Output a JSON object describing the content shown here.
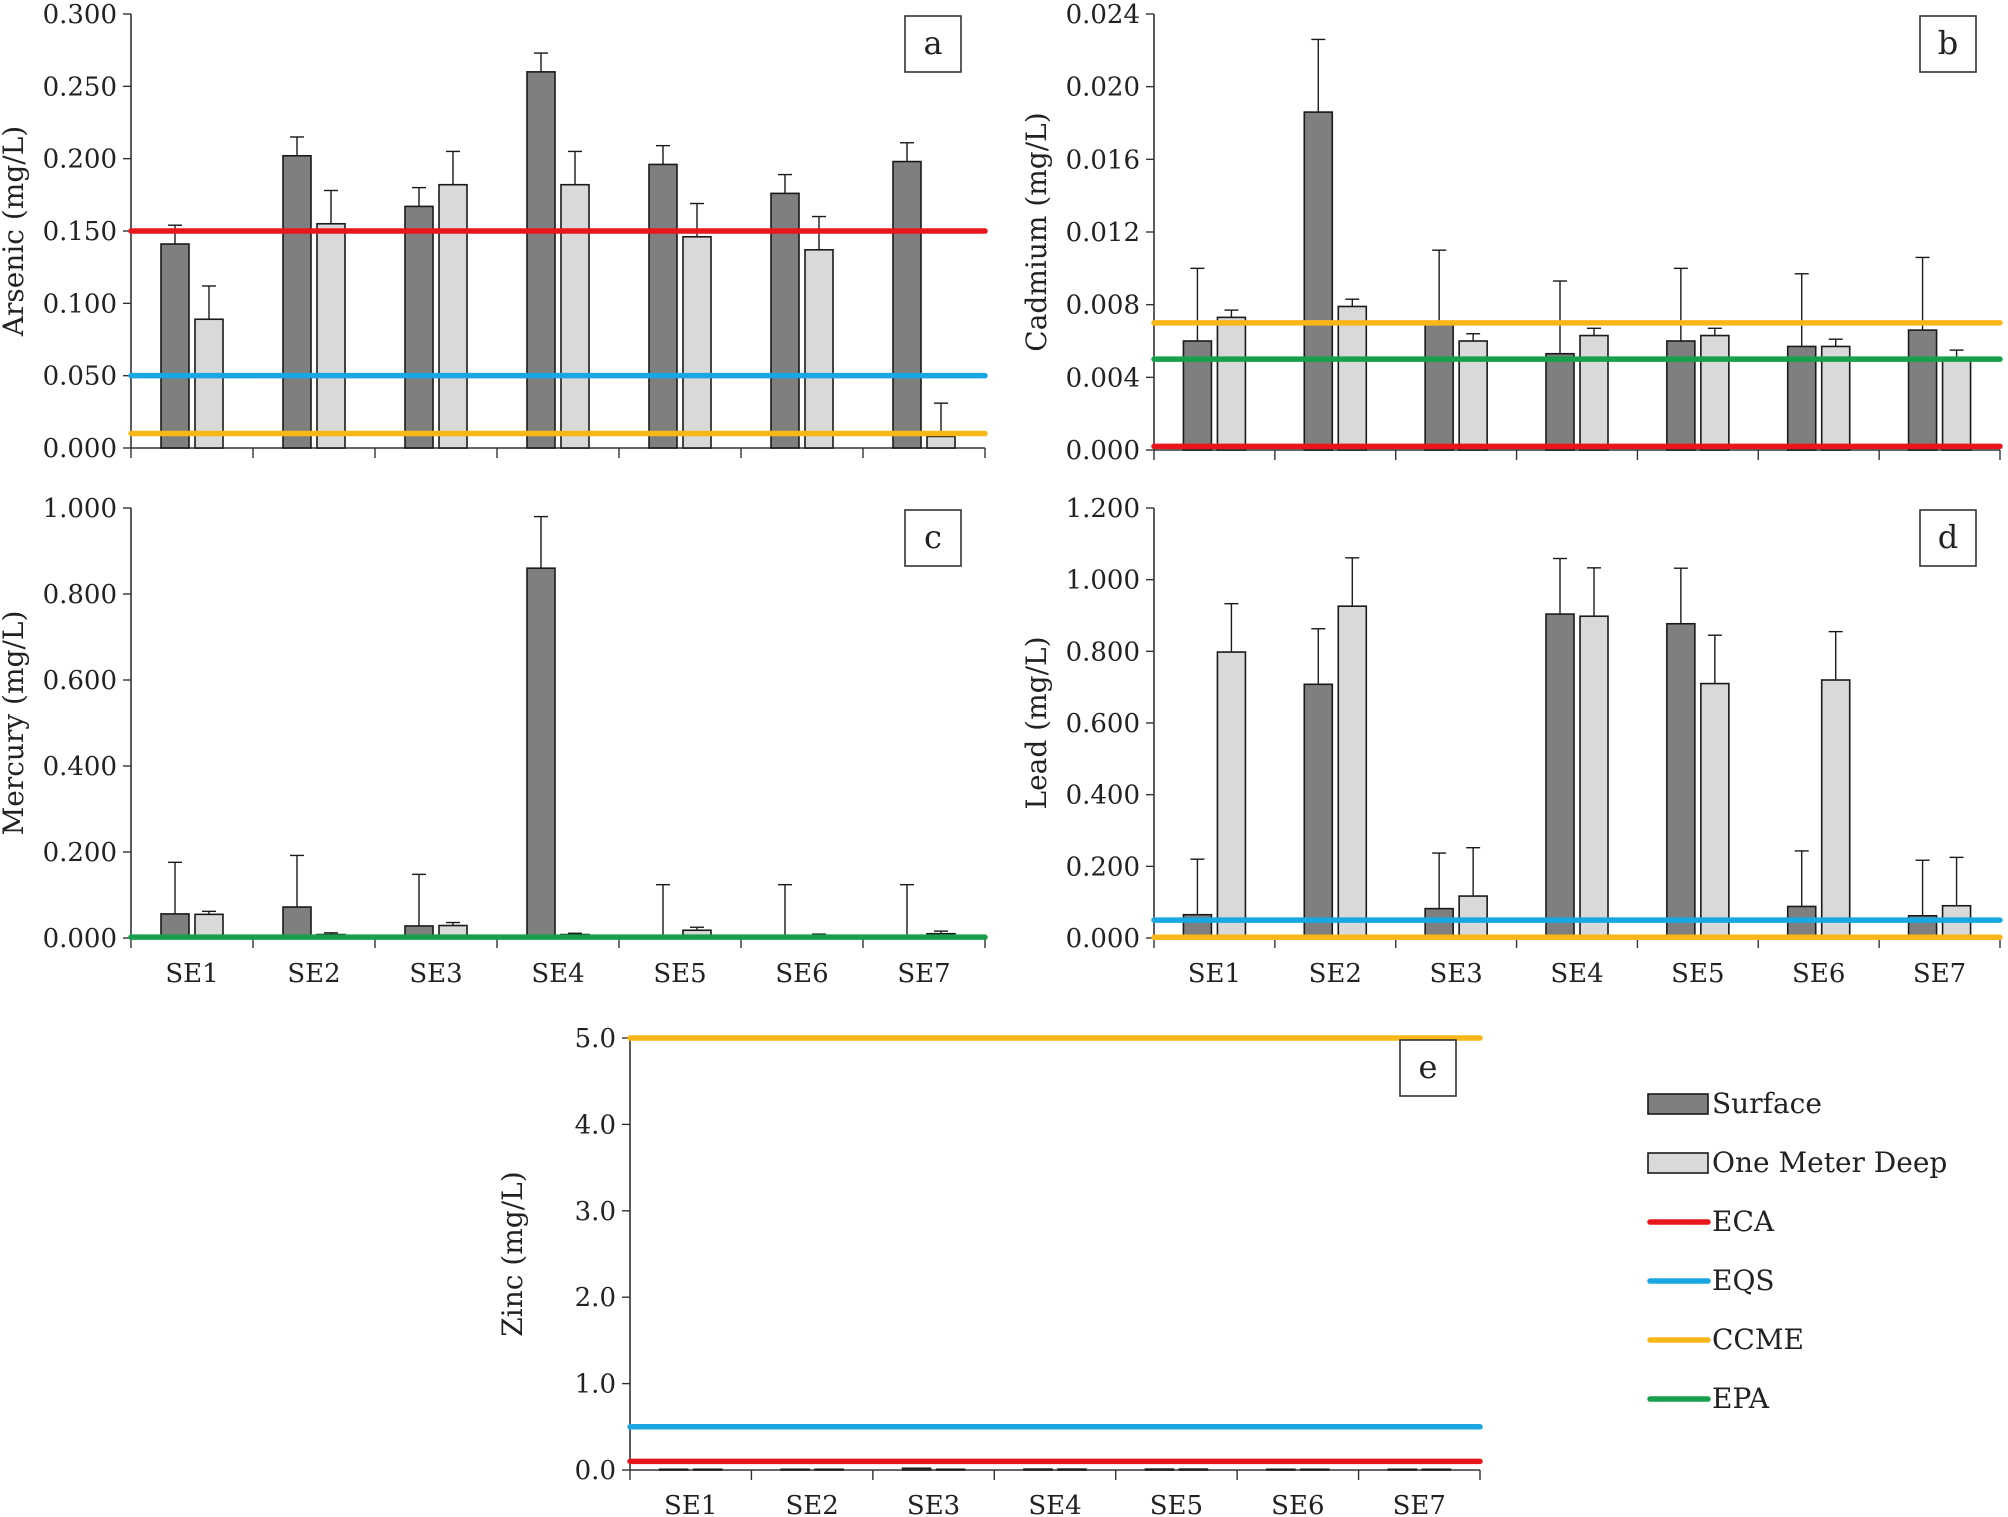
{
  "chart_data": [
    {
      "id": "a",
      "type": "bar",
      "panel_label": "a",
      "ylabel": "Arsenic (mg/L)",
      "ylim": [
        0,
        0.3
      ],
      "yticks": [
        0,
        0.05,
        0.1,
        0.15,
        0.2,
        0.25,
        0.3
      ],
      "ytick_labels": [
        "0.000",
        "0.050",
        "0.100",
        "0.150",
        "0.200",
        "0.250",
        "0.300"
      ],
      "categories": [
        "SE1",
        "SE2",
        "SE3",
        "SE4",
        "SE5",
        "SE6",
        "SE7"
      ],
      "show_category_labels": false,
      "series": [
        {
          "name": "Surface",
          "color": "#7f7f7f",
          "values": [
            0.141,
            0.202,
            0.167,
            0.26,
            0.196,
            0.176,
            0.198
          ],
          "errors": [
            0.013,
            0.013,
            0.013,
            0.013,
            0.013,
            0.013,
            0.013
          ]
        },
        {
          "name": "One Meter Deep",
          "color": "#d9d9d9",
          "values": [
            0.089,
            0.155,
            0.182,
            0.182,
            0.146,
            0.137,
            0.008
          ],
          "errors": [
            0.023,
            0.023,
            0.023,
            0.023,
            0.023,
            0.023,
            0.023
          ]
        }
      ],
      "guidelines": [
        {
          "name": "ECA",
          "value": 0.15,
          "color": "#e8161b"
        },
        {
          "name": "EQS",
          "value": 0.05,
          "color": "#1aa7e1"
        },
        {
          "name": "CCME",
          "value": 0.01,
          "color": "#f7b718"
        }
      ]
    },
    {
      "id": "b",
      "type": "bar",
      "panel_label": "b",
      "ylabel": "Cadmium (mg/L)",
      "ylim": [
        0,
        0.024
      ],
      "yticks": [
        0,
        0.004,
        0.008,
        0.012,
        0.016,
        0.02,
        0.024
      ],
      "ytick_labels": [
        "0.000",
        "0.004",
        "0.008",
        "0.012",
        "0.016",
        "0.020",
        "0.024"
      ],
      "categories": [
        "SE1",
        "SE2",
        "SE3",
        "SE4",
        "SE5",
        "SE6",
        "SE7"
      ],
      "show_category_labels": false,
      "series": [
        {
          "name": "Surface",
          "color": "#7f7f7f",
          "values": [
            0.006,
            0.0186,
            0.007,
            0.0053,
            0.006,
            0.0057,
            0.0066
          ],
          "errors": [
            0.004,
            0.004,
            0.004,
            0.004,
            0.004,
            0.004,
            0.004
          ]
        },
        {
          "name": "One Meter Deep",
          "color": "#d9d9d9",
          "values": [
            0.0073,
            0.0079,
            0.006,
            0.0063,
            0.0063,
            0.0057,
            0.0051
          ],
          "errors": [
            0.0004,
            0.0004,
            0.0004,
            0.0004,
            0.0004,
            0.0004,
            0.0004
          ]
        }
      ],
      "guidelines": [
        {
          "name": "CCME",
          "value": 0.007,
          "color": "#f7b718"
        },
        {
          "name": "EPA",
          "value": 0.005,
          "color": "#16a04b"
        },
        {
          "name": "ECA",
          "value": 0.0002,
          "color": "#e8161b"
        }
      ]
    },
    {
      "id": "c",
      "type": "bar",
      "panel_label": "c",
      "ylabel": "Mercury (mg/L)",
      "ylim": [
        0,
        1.0
      ],
      "yticks": [
        0,
        0.2,
        0.4,
        0.6,
        0.8,
        1.0
      ],
      "ytick_labels": [
        "0.000",
        "0.200",
        "0.400",
        "0.600",
        "0.800",
        "1.000"
      ],
      "categories": [
        "SE1",
        "SE2",
        "SE3",
        "SE4",
        "SE5",
        "SE6",
        "SE7"
      ],
      "show_category_labels": true,
      "series": [
        {
          "name": "Surface",
          "color": "#7f7f7f",
          "values": [
            0.056,
            0.072,
            0.028,
            0.86,
            0.004,
            0.004,
            0.004
          ],
          "errors": [
            0.12,
            0.12,
            0.12,
            0.12,
            0.12,
            0.12,
            0.12
          ]
        },
        {
          "name": "One Meter Deep",
          "color": "#d9d9d9",
          "values": [
            0.055,
            0.008,
            0.029,
            0.008,
            0.018,
            0.006,
            0.01
          ],
          "errors": [
            0.007,
            0.004,
            0.007,
            0.003,
            0.007,
            0.003,
            0.006
          ]
        }
      ],
      "guidelines": [
        {
          "name": "EPA",
          "value": 0.002,
          "color": "#16a04b"
        }
      ]
    },
    {
      "id": "d",
      "type": "bar",
      "panel_label": "d",
      "ylabel": "Lead (mg/L)",
      "ylim": [
        0,
        1.2
      ],
      "yticks": [
        0,
        0.2,
        0.4,
        0.6,
        0.8,
        1.0,
        1.2
      ],
      "ytick_labels": [
        "0.000",
        "0.200",
        "0.400",
        "0.600",
        "0.800",
        "1.000",
        "1.200"
      ],
      "categories": [
        "SE1",
        "SE2",
        "SE3",
        "SE4",
        "SE5",
        "SE6",
        "SE7"
      ],
      "show_category_labels": true,
      "series": [
        {
          "name": "Surface",
          "color": "#7f7f7f",
          "values": [
            0.065,
            0.708,
            0.082,
            0.904,
            0.877,
            0.088,
            0.062
          ],
          "errors": [
            0.155,
            0.155,
            0.155,
            0.155,
            0.155,
            0.155,
            0.155
          ]
        },
        {
          "name": "One Meter Deep",
          "color": "#d9d9d9",
          "values": [
            0.798,
            0.926,
            0.117,
            0.898,
            0.71,
            0.72,
            0.09
          ],
          "errors": [
            0.135,
            0.135,
            0.135,
            0.135,
            0.135,
            0.135,
            0.135
          ]
        }
      ],
      "guidelines": [
        {
          "name": "EQS",
          "value": 0.05,
          "color": "#1aa7e1"
        },
        {
          "name": "CCME",
          "value": 0.002,
          "color": "#f7b718"
        }
      ]
    },
    {
      "id": "e",
      "type": "bar",
      "panel_label": "e",
      "ylabel": "Zinc (mg/L)",
      "ylim": [
        0,
        5.0
      ],
      "yticks": [
        0,
        1,
        2,
        3,
        4,
        5
      ],
      "ytick_labels": [
        "0.0",
        "1.0",
        "2.0",
        "3.0",
        "4.0",
        "5.0"
      ],
      "categories": [
        "SE1",
        "SE2",
        "SE3",
        "SE4",
        "SE5",
        "SE6",
        "SE7"
      ],
      "show_category_labels": true,
      "series": [
        {
          "name": "Surface",
          "color": "#7f7f7f",
          "values": [
            0.008,
            0.008,
            0.02,
            0.01,
            0.01,
            0.008,
            0.008
          ],
          "errors": [
            0,
            0,
            0,
            0,
            0,
            0,
            0
          ]
        },
        {
          "name": "One Meter Deep",
          "color": "#d9d9d9",
          "values": [
            0.008,
            0.008,
            0.008,
            0.01,
            0.01,
            0.008,
            0.008
          ],
          "errors": [
            0,
            0,
            0,
            0,
            0,
            0,
            0
          ]
        }
      ],
      "guidelines": [
        {
          "name": "CCME",
          "value": 5.0,
          "color": "#f7b718"
        },
        {
          "name": "EQS",
          "value": 0.5,
          "color": "#1aa7e1"
        },
        {
          "name": "ECA",
          "value": 0.1,
          "color": "#e8161b"
        }
      ]
    }
  ],
  "legend": {
    "items": [
      {
        "label": "Surface",
        "kind": "box",
        "color": "#7f7f7f"
      },
      {
        "label": "One Meter Deep",
        "kind": "box",
        "color": "#d9d9d9"
      },
      {
        "label": "ECA",
        "kind": "line",
        "color": "#e8161b"
      },
      {
        "label": "EQS",
        "kind": "line",
        "color": "#1aa7e1"
      },
      {
        "label": "CCME",
        "kind": "line",
        "color": "#f7b718"
      },
      {
        "label": "EPA",
        "kind": "line",
        "color": "#16a04b"
      }
    ]
  }
}
